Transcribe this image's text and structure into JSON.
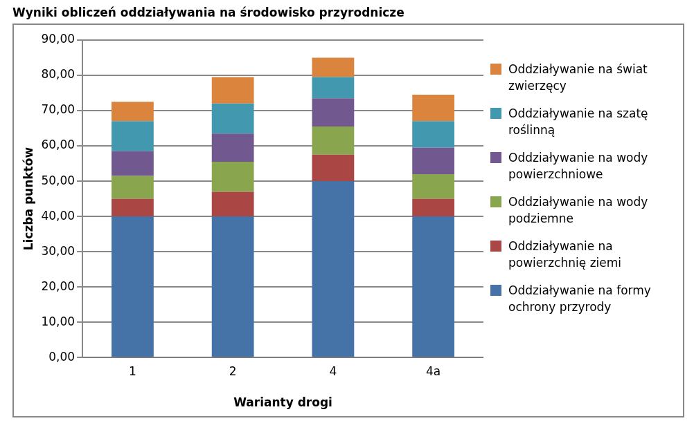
{
  "chart_data": {
    "type": "bar",
    "title": "Wyniki obliczeń oddziaływania na środowisko przyrodnicze",
    "xlabel": "Warianty drogi",
    "ylabel": "Liczba punktów",
    "categories": [
      "1",
      "2",
      "4",
      "4a"
    ],
    "stacked": true,
    "legend": "right",
    "grid": "y",
    "ylim": [
      0,
      90
    ],
    "yticks": [
      {
        "value": 0,
        "label": "0,00"
      },
      {
        "value": 10,
        "label": "10,00"
      },
      {
        "value": 20,
        "label": "20,00"
      },
      {
        "value": 30,
        "label": "30,00"
      },
      {
        "value": 40,
        "label": "40,00"
      },
      {
        "value": 50,
        "label": "50,00"
      },
      {
        "value": 60,
        "label": "60,00"
      },
      {
        "value": 70,
        "label": "70,00"
      },
      {
        "value": 80,
        "label": "80,00"
      },
      {
        "value": 90,
        "label": "90,00"
      }
    ],
    "series": [
      {
        "name": "Oddziaływanie na formy ochrony przyrody",
        "color": "#4572a7",
        "values": [
          40,
          40,
          50,
          40
        ]
      },
      {
        "name": "Oddziaływanie na powierzchnię ziemi",
        "color": "#aa4643",
        "values": [
          5,
          7,
          7.5,
          5
        ]
      },
      {
        "name": "Oddziaływanie na wody podziemne",
        "color": "#89a54e",
        "values": [
          6.5,
          8.5,
          8,
          7
        ]
      },
      {
        "name": "Oddziaływanie na wody powierzchniowe",
        "color": "#71588f",
        "values": [
          7,
          8,
          8,
          7.5
        ]
      },
      {
        "name": "Oddziaływanie na szatę roślinną",
        "color": "#4198af",
        "values": [
          8.5,
          8.5,
          6,
          7.5
        ]
      },
      {
        "name": "Oddziaływanie na świat zwierzęcy",
        "color": "#db843d",
        "values": [
          5.5,
          7.5,
          5.5,
          7.5
        ]
      }
    ]
  }
}
